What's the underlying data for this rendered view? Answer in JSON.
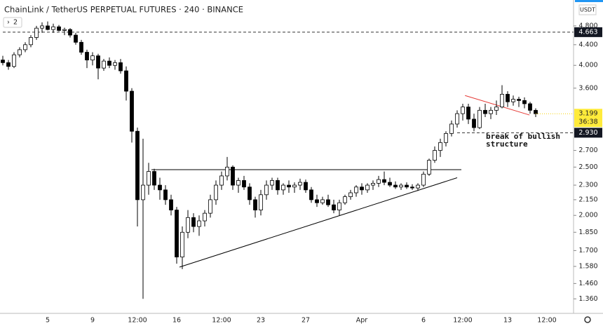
{
  "chart_data": {
    "type": "candlestick",
    "title": "ChainLink / TetherUS PERPETUAL FUTURES · 240 · BINANCE",
    "button": "2",
    "currency": "USDT",
    "countdown": "36:38",
    "last_price": 3.199,
    "log_scale": true,
    "up_color": "#ffffff",
    "down_color": "#000000",
    "ylim": [
      1.28,
      5.41
    ],
    "yticks": [
      {
        "value": 4.8,
        "label": "4.800"
      },
      {
        "value": 4.4,
        "label": "4.400"
      },
      {
        "value": 4.0,
        "label": "4.000"
      },
      {
        "value": 3.6,
        "label": "3.600"
      },
      {
        "value": 2.7,
        "label": "2.700"
      },
      {
        "value": 2.5,
        "label": "2.500"
      },
      {
        "value": 2.3,
        "label": "2.300"
      },
      {
        "value": 2.15,
        "label": "2.150"
      },
      {
        "value": 2.0,
        "label": "2.000"
      },
      {
        "value": 1.85,
        "label": "1.850"
      },
      {
        "value": 1.7,
        "label": "1.700"
      },
      {
        "value": 1.58,
        "label": "1.580"
      },
      {
        "value": 1.46,
        "label": "1.460"
      },
      {
        "value": 1.36,
        "label": "1.360"
      }
    ],
    "categories": [
      null,
      null,
      null,
      null,
      null,
      null,
      null,
      null,
      "5",
      null,
      null,
      null,
      null,
      null,
      null,
      null,
      "9",
      null,
      null,
      null,
      null,
      null,
      null,
      null,
      "12:00",
      null,
      null,
      null,
      null,
      null,
      null,
      "16",
      null,
      null,
      null,
      null,
      null,
      null,
      null,
      "12:00",
      null,
      null,
      null,
      null,
      null,
      null,
      "23",
      null,
      null,
      null,
      null,
      null,
      null,
      null,
      "27",
      null,
      null,
      null,
      null,
      null,
      null,
      null,
      null,
      null,
      "Apr",
      null,
      null,
      null,
      null,
      null,
      null,
      null,
      null,
      null,
      null,
      "6",
      null,
      null,
      null,
      null,
      null,
      null,
      "12:00",
      null,
      null,
      null,
      null,
      null,
      null,
      null,
      "13",
      null,
      null,
      null,
      null,
      null,
      null,
      "12:00"
    ],
    "open": [
      4.1,
      4.05,
      3.98,
      4.2,
      4.3,
      4.4,
      4.55,
      4.75,
      4.8,
      4.72,
      4.78,
      4.7,
      4.72,
      4.6,
      4.45,
      4.25,
      4.1,
      4.18,
      3.95,
      4.08,
      4.0,
      4.05,
      3.9,
      3.55,
      2.95,
      2.15,
      2.3,
      2.45,
      2.3,
      2.25,
      2.15,
      2.05,
      1.65,
      1.85,
      1.98,
      1.9,
      1.95,
      2.02,
      2.15,
      2.3,
      2.4,
      2.5,
      2.3,
      2.35,
      2.28,
      2.15,
      2.05,
      2.2,
      2.3,
      2.35,
      2.25,
      2.3,
      2.28,
      2.3,
      2.33,
      2.25,
      2.15,
      2.12,
      2.15,
      2.1,
      2.05,
      2.12,
      2.18,
      2.22,
      2.28,
      2.25,
      2.3,
      2.32,
      2.36,
      2.33,
      2.3,
      2.28,
      2.3,
      2.28,
      2.27,
      2.3,
      2.42,
      2.58,
      2.7,
      2.8,
      2.92,
      3.05,
      3.2,
      3.3,
      3.12,
      3.0,
      3.25,
      3.2,
      3.25,
      3.3,
      3.5,
      3.38,
      3.42,
      3.4,
      3.35,
      3.25,
      null,
      null
    ],
    "high": [
      4.18,
      4.1,
      4.25,
      4.35,
      4.45,
      4.6,
      4.8,
      4.88,
      4.9,
      4.85,
      4.82,
      4.76,
      4.75,
      4.65,
      4.5,
      4.3,
      4.25,
      4.22,
      4.12,
      4.15,
      4.1,
      4.12,
      3.98,
      3.6,
      3.0,
      2.85,
      2.55,
      2.48,
      2.38,
      2.3,
      2.2,
      2.08,
      1.9,
      2.05,
      2.02,
      2.0,
      2.05,
      2.2,
      2.35,
      2.45,
      2.62,
      2.52,
      2.38,
      2.4,
      2.32,
      2.18,
      2.25,
      2.35,
      2.38,
      2.38,
      2.32,
      2.35,
      2.33,
      2.37,
      2.36,
      2.28,
      2.2,
      2.18,
      2.2,
      2.15,
      2.15,
      2.2,
      2.25,
      2.3,
      2.32,
      2.32,
      2.35,
      2.4,
      2.45,
      2.38,
      2.34,
      2.32,
      2.33,
      2.31,
      2.32,
      2.45,
      2.6,
      2.75,
      2.85,
      2.95,
      3.1,
      3.25,
      3.35,
      3.35,
      3.2,
      3.3,
      3.35,
      3.3,
      3.4,
      3.65,
      3.55,
      3.48,
      3.46,
      3.45,
      3.38,
      3.28,
      null,
      null
    ],
    "low": [
      4.0,
      3.92,
      3.95,
      4.15,
      4.25,
      4.35,
      4.5,
      4.65,
      4.7,
      4.65,
      4.68,
      4.6,
      4.55,
      4.4,
      4.2,
      3.95,
      4.0,
      3.75,
      3.9,
      3.95,
      3.92,
      3.85,
      3.4,
      2.8,
      1.9,
      1.36,
      2.2,
      2.25,
      2.15,
      2.1,
      2.0,
      1.6,
      1.56,
      1.8,
      1.85,
      1.82,
      1.9,
      1.98,
      2.1,
      2.25,
      2.35,
      2.25,
      2.22,
      2.25,
      2.1,
      1.98,
      2.0,
      2.15,
      2.25,
      2.2,
      2.2,
      2.22,
      2.22,
      2.25,
      2.22,
      2.12,
      2.08,
      2.1,
      2.08,
      2.02,
      2.0,
      2.1,
      2.15,
      2.18,
      2.2,
      2.22,
      2.25,
      2.28,
      2.3,
      2.28,
      2.26,
      2.25,
      2.26,
      2.25,
      2.24,
      2.28,
      2.4,
      2.55,
      2.62,
      2.75,
      2.88,
      3.0,
      3.1,
      3.05,
      2.95,
      2.98,
      3.15,
      3.12,
      3.18,
      3.28,
      3.3,
      3.32,
      3.3,
      3.28,
      3.2,
      3.15,
      null,
      null
    ],
    "close": [
      4.05,
      3.98,
      4.2,
      4.3,
      4.4,
      4.55,
      4.75,
      4.8,
      4.72,
      4.78,
      4.7,
      4.72,
      4.6,
      4.45,
      4.25,
      4.1,
      4.18,
      3.95,
      4.08,
      4.0,
      4.05,
      3.9,
      3.55,
      2.95,
      2.15,
      2.3,
      2.45,
      2.3,
      2.25,
      2.15,
      2.05,
      1.65,
      1.85,
      1.98,
      1.9,
      1.95,
      2.02,
      2.15,
      2.3,
      2.4,
      2.5,
      2.3,
      2.35,
      2.28,
      2.15,
      2.05,
      2.2,
      2.3,
      2.35,
      2.25,
      2.3,
      2.28,
      2.3,
      2.33,
      2.25,
      2.15,
      2.12,
      2.15,
      2.1,
      2.05,
      2.12,
      2.18,
      2.22,
      2.28,
      2.25,
      2.3,
      2.32,
      2.36,
      2.33,
      2.3,
      2.28,
      2.3,
      2.28,
      2.27,
      2.3,
      2.42,
      2.58,
      2.7,
      2.8,
      2.92,
      3.05,
      3.2,
      3.3,
      3.12,
      3.0,
      3.25,
      3.2,
      3.25,
      3.3,
      3.5,
      3.38,
      3.42,
      3.4,
      3.35,
      3.25,
      3.199,
      null,
      null
    ],
    "hlines": [
      {
        "value": 4.663,
        "label": "4.663",
        "x_start": 0
      },
      {
        "value": 2.93,
        "label": "2.930",
        "x_start": 81
      }
    ],
    "trend_lines": [
      {
        "x": [
          26.5,
          81.75
        ],
        "y": [
          2.47,
          2.47
        ],
        "color": "#000000"
      },
      {
        "x": [
          31.5,
          81
        ],
        "y": [
          1.575,
          2.38
        ],
        "color": "#000000"
      },
      {
        "x": [
          82.4,
          93.9
        ],
        "y": [
          3.48,
          3.18
        ],
        "color": "#e53935"
      }
    ],
    "annotation": [
      "break of bullish",
      "structure"
    ]
  }
}
